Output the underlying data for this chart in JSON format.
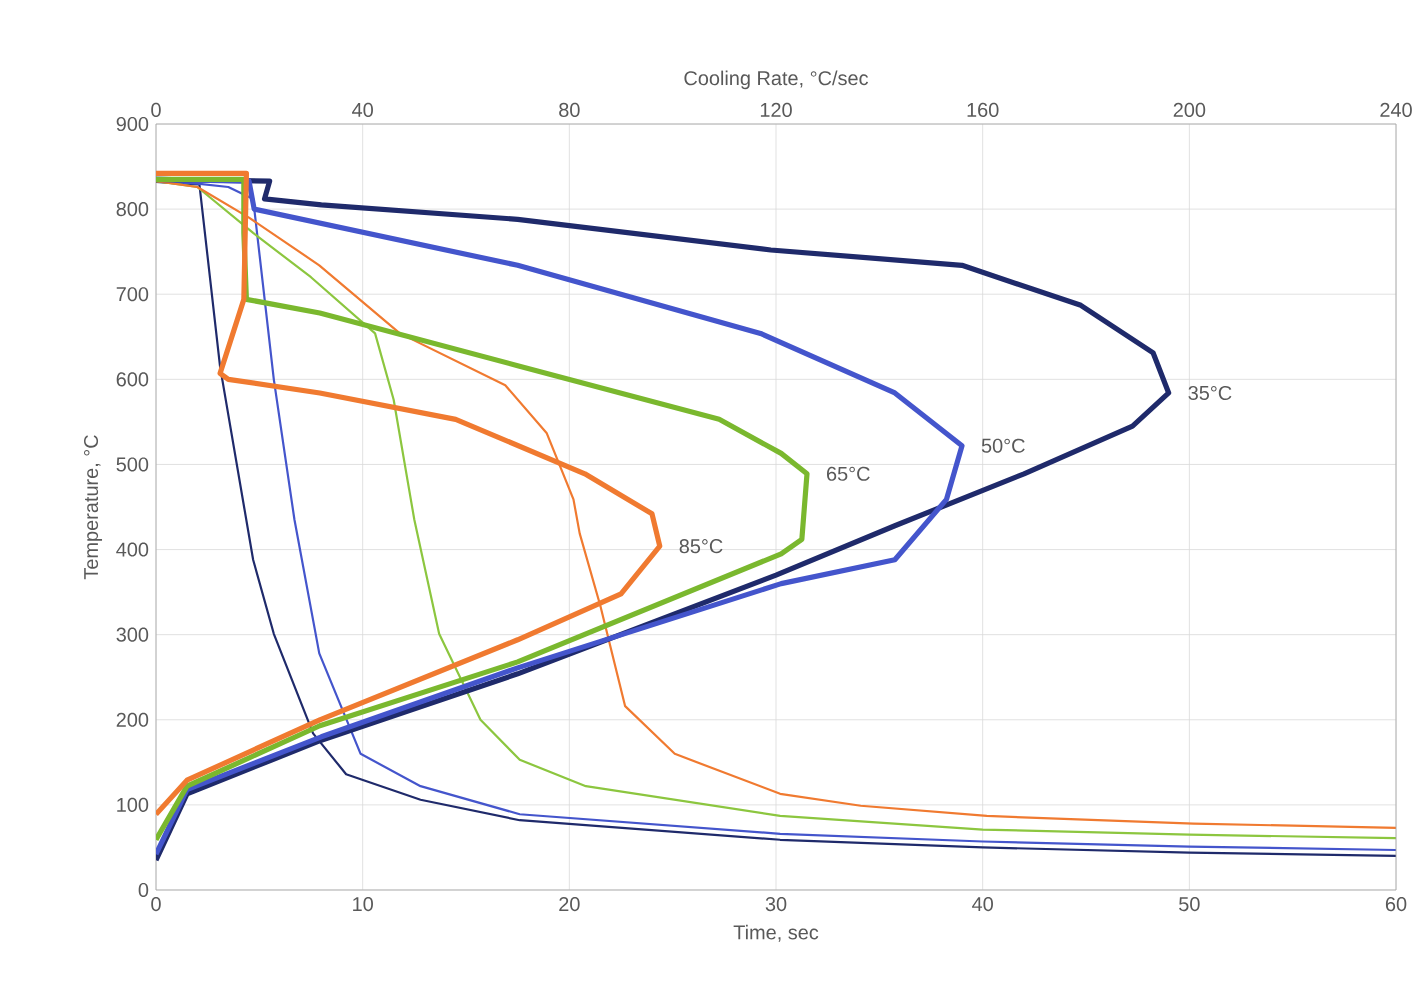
{
  "chart_data": {
    "type": "line",
    "xlabel": "Time, sec",
    "x2label": "Cooling Rate, °C/sec",
    "ylabel": "Temperature, °C",
    "xlim": [
      0,
      60
    ],
    "xticks": [
      0,
      10,
      20,
      30,
      40,
      50,
      60
    ],
    "x2lim": [
      0,
      240
    ],
    "x2ticks": [
      0,
      40,
      80,
      120,
      160,
      200,
      240
    ],
    "ylim": [
      0,
      900
    ],
    "yticks": [
      0,
      100,
      200,
      300,
      400,
      500,
      600,
      700,
      800,
      900
    ],
    "grid": true,
    "series": [
      {
        "color": "#1f2a6b",
        "x": [
          0,
          1.2,
          2.1,
          3.1,
          4.7,
          5.7,
          7.6,
          9.2,
          12.8,
          17.6,
          30.2,
          40,
          50,
          60
        ],
        "values": [
          832,
          830,
          829,
          615,
          388,
          301,
          184,
          136,
          106,
          82,
          59,
          50,
          44,
          40
        ]
      },
      {
        "color": "#4455cc",
        "x": [
          0,
          2,
          3.5,
          4.7,
          5.7,
          6.7,
          7.9,
          9.9,
          12.8,
          17.6,
          30.2,
          40,
          50,
          60
        ],
        "values": [
          833,
          830,
          826,
          812,
          600,
          435,
          278,
          160,
          122,
          89,
          66,
          57,
          51,
          47
        ]
      },
      {
        "color": "#8cc63f",
        "x": [
          0,
          2,
          4.7,
          7.5,
          10.6,
          11.5,
          12.5,
          13.7,
          15.7,
          17.6,
          20.8,
          30.2,
          40,
          50,
          60
        ],
        "values": [
          833,
          826,
          772,
          720,
          654,
          576,
          435,
          301,
          200,
          153,
          122,
          87,
          71,
          65,
          61
        ]
      },
      {
        "color": "#f07a30",
        "x": [
          0,
          2,
          4.5,
          7.9,
          11.8,
          16.9,
          18.9,
          20.2,
          20.5,
          21.5,
          22.7,
          25.1,
          30.2,
          34.1,
          40.2,
          50.2,
          60
        ],
        "values": [
          833,
          826,
          790,
          734,
          654,
          593,
          537,
          459,
          419,
          334,
          216,
          160,
          113,
          99,
          87,
          78,
          73
        ]
      },
      {
        "name": "35°C",
        "axis": "x2",
        "color": "#1f2a6b",
        "x": [
          0,
          22,
          21,
          32,
          70,
          119,
          156,
          179,
          193,
          196,
          189,
          168,
          143,
          120,
          70,
          32,
          6,
          0
        ],
        "values": [
          835,
          833,
          812,
          805,
          788,
          752,
          734,
          687,
          631,
          584,
          545,
          489,
          428,
          370,
          254,
          176,
          113,
          35
        ]
      },
      {
        "name": "50°C",
        "axis": "x2",
        "color": "#4455cc",
        "x": [
          0,
          18,
          19,
          70,
          117,
          143,
          156,
          153,
          143,
          121,
          70,
          32,
          6,
          0
        ],
        "values": [
          835,
          833,
          800,
          734,
          654,
          584,
          522,
          459,
          388,
          360,
          261,
          180,
          118,
          42
        ]
      },
      {
        "name": "65°C",
        "axis": "x2",
        "color": "#7ab82e",
        "x": [
          0,
          17,
          17,
          17.5,
          31.7,
          70,
          109,
          121,
          126,
          125,
          121,
          70,
          31.7,
          6,
          0
        ],
        "values": [
          835,
          835,
          772,
          694,
          678,
          616,
          553,
          513,
          489,
          412,
          395,
          268,
          193,
          122,
          59
        ]
      },
      {
        "name": "85°C",
        "axis": "x2",
        "color": "#f07a30",
        "x": [
          0,
          17.5,
          17,
          12.4,
          14,
          31.7,
          58,
          83,
          96,
          97.5,
          90,
          70,
          31.7,
          6,
          0
        ],
        "values": [
          842,
          842,
          694,
          607,
          600,
          584,
          553,
          489,
          442,
          404,
          348,
          294,
          200,
          129,
          89
        ]
      }
    ]
  }
}
